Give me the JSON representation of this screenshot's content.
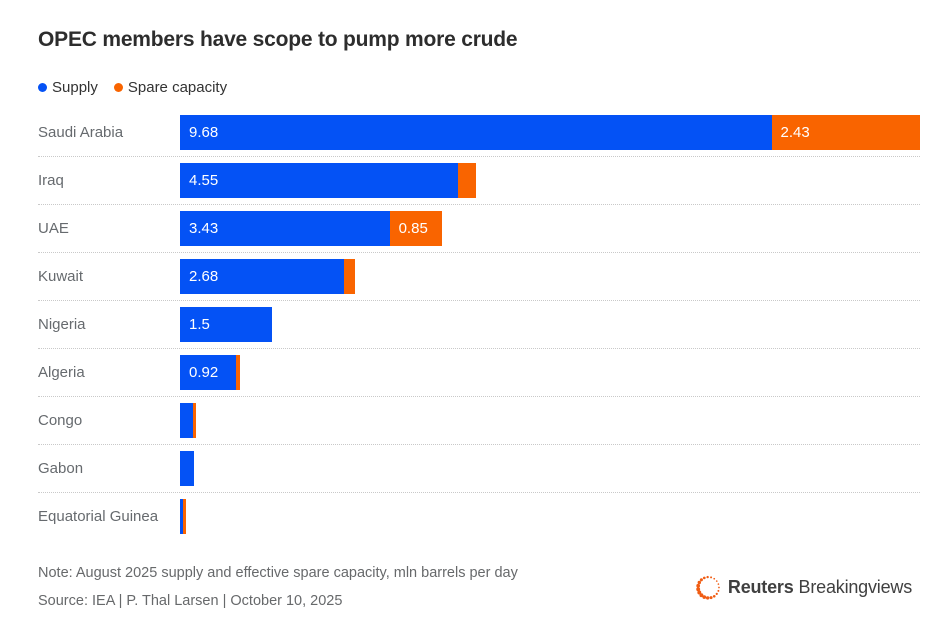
{
  "chart_data": {
    "type": "bar",
    "orientation": "horizontal",
    "stacked": true,
    "title": "OPEC members have scope to pump more crude",
    "categories": [
      "Saudi Arabia",
      "Iraq",
      "UAE",
      "Kuwait",
      "Nigeria",
      "Algeria",
      "Congo",
      "Gabon",
      "Equatorial Guinea"
    ],
    "series": [
      {
        "name": "Supply",
        "color": "#0452f5",
        "values": [
          9.68,
          4.55,
          3.43,
          2.68,
          1.5,
          0.92,
          0.22,
          0.23,
          0.05
        ],
        "bar_labels": [
          "9.68",
          "4.55",
          "3.43",
          "2.68",
          "1.5",
          "0.92",
          "",
          "",
          ""
        ]
      },
      {
        "name": "Spare capacity",
        "color": "#f96400",
        "values": [
          2.43,
          0.3,
          0.85,
          0.19,
          0,
          0.06,
          0.04,
          0,
          0.05
        ],
        "bar_labels": [
          "2.43",
          "",
          "0.85",
          "",
          "",
          "",
          "",
          "",
          ""
        ]
      }
    ],
    "xlim": [
      0,
      12.11
    ],
    "grid": false,
    "legend_position": "top",
    "value_unit": "mln barrels per day"
  },
  "footer": {
    "note": "Note: August 2025 supply and effective spare capacity, mln barrels per day",
    "source": "Source: IEA | P. Thal Larsen | October 10, 2025",
    "brand_primary": "Reuters",
    "brand_secondary": "Breakingviews"
  },
  "colors": {
    "supply": "#0452f5",
    "spare": "#f96400",
    "title_text": "#2d2d2d",
    "label_text": "#666a6e",
    "separator": "#c9c9c9",
    "logo_orange": "#f05d14"
  }
}
